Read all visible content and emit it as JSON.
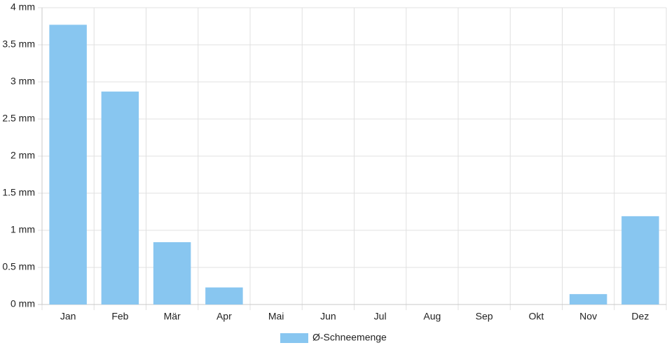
{
  "chart_data": {
    "type": "bar",
    "categories": [
      "Jan",
      "Feb",
      "Mär",
      "Apr",
      "Mai",
      "Jun",
      "Jul",
      "Aug",
      "Sep",
      "Okt",
      "Nov",
      "Dez"
    ],
    "series": [
      {
        "name": "Ø-Schneemenge",
        "color": "#88c6f0",
        "values": [
          3.77,
          2.87,
          0.84,
          0.23,
          0,
          0,
          0,
          0,
          0,
          0,
          0.14,
          1.19
        ]
      }
    ],
    "ylim": [
      0,
      4
    ],
    "yticks": [
      {
        "value": 0,
        "label": "0 mm"
      },
      {
        "value": 0.5,
        "label": "0.5 mm"
      },
      {
        "value": 1,
        "label": "1 mm"
      },
      {
        "value": 1.5,
        "label": "1.5 mm"
      },
      {
        "value": 2,
        "label": "2 mm"
      },
      {
        "value": 2.5,
        "label": "2.5 mm"
      },
      {
        "value": 3,
        "label": "3 mm"
      },
      {
        "value": 3.5,
        "label": "3.5 mm"
      },
      {
        "value": 4,
        "label": "4 mm"
      }
    ],
    "grid": true,
    "legend": "bottom"
  }
}
